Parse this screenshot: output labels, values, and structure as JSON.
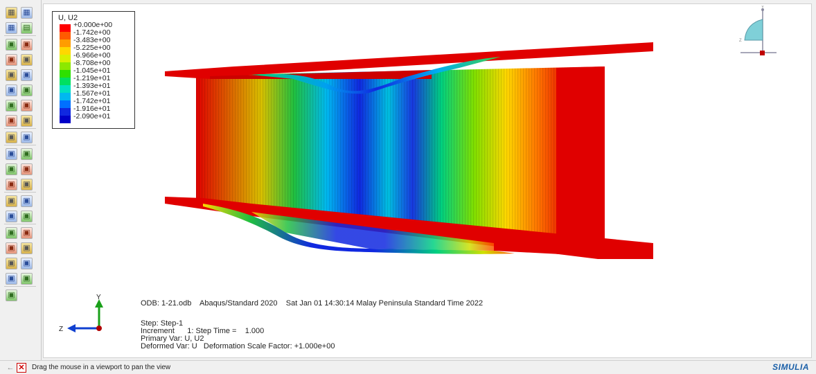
{
  "legend": {
    "title": "U, U2",
    "levels": [
      {
        "label": "+0.000e+00",
        "color": "#ff0000"
      },
      {
        "label": "-1.742e+00",
        "color": "#ff5a00"
      },
      {
        "label": "-3.483e+00",
        "color": "#ff9c00"
      },
      {
        "label": "-5.225e+00",
        "color": "#ffd700"
      },
      {
        "label": "-6.966e+00",
        "color": "#d8f000"
      },
      {
        "label": "-8.708e+00",
        "color": "#8ce800"
      },
      {
        "label": "-1.045e+01",
        "color": "#2ee000"
      },
      {
        "label": "-1.219e+01",
        "color": "#00e060"
      },
      {
        "label": "-1.393e+01",
        "color": "#00e0c0"
      },
      {
        "label": "-1.567e+01",
        "color": "#00b8f0"
      },
      {
        "label": "-1.742e+01",
        "color": "#0070ff"
      },
      {
        "label": "-1.916e+01",
        "color": "#1028e0"
      },
      {
        "label": "-2.090e+01",
        "color": "#0000c8"
      }
    ]
  },
  "info": {
    "odb_line": "ODB: 1-21.odb    Abaqus/Standard 2020    Sat Jan 01 14:30:14 Malay Peninsula Standard Time 2022",
    "step_line": "Step: Step-1",
    "increment_line": "Increment      1: Step Time =    1.000",
    "primary_line": "Primary Var: U, U2",
    "deformed_line": "Deformed Var: U   Deformation Scale Factor: +1.000e+00"
  },
  "triad": {
    "y": "Y",
    "z": "Z"
  },
  "viewcube": {
    "y": "Y",
    "z": "Z"
  },
  "status": {
    "message": "Drag the mouse in a viewport to pan the view",
    "back_icon": "←",
    "cancel_icon": "✕"
  },
  "brand": "SIMULIA",
  "toolbox": {
    "rows": [
      [
        "grid-icon",
        "grid-icon"
      ],
      [
        "grid-icon",
        "palette-icon"
      ],
      [
        "deformed-shape-icon",
        "undeformed-shape-icon"
      ],
      [
        "contour-icon",
        "contour-options-icon"
      ],
      [
        "symbol-icon",
        "symbol-options-icon"
      ],
      [
        "material-orientation-icon",
        "material-options-icon"
      ],
      [
        "animate-icon",
        "animate-options-icon"
      ],
      [
        "frame-icon",
        "frame-options-icon"
      ],
      [
        "frame-list-icon",
        "frame-list-options-icon"
      ],
      [
        "triad-icon",
        "table-icon"
      ],
      [
        "report-icon",
        "report-table-icon"
      ],
      [
        "path-icon",
        "xy-plot-icon"
      ],
      [
        "create-xy-icon",
        "xy-options-icon"
      ],
      [
        "probe-icon",
        "probe-table-icon"
      ],
      [
        "query-icon",
        "query-table-icon"
      ],
      [
        "free-body-icon",
        "free-body-table-icon"
      ],
      [
        "section-cut-icon",
        "section-table-icon"
      ],
      [
        "display-group-icon",
        "display-table-icon"
      ],
      [
        "tools-icon"
      ]
    ]
  }
}
